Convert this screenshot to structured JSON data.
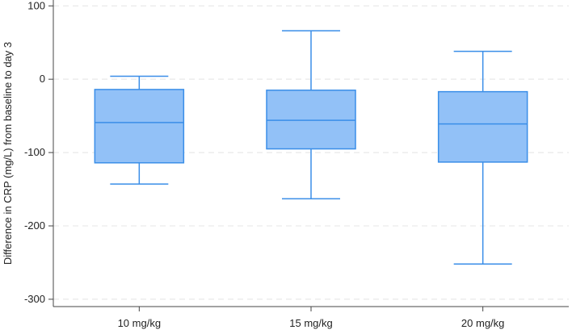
{
  "chart_data": {
    "type": "box",
    "title": "",
    "xlabel": "",
    "ylabel": "Difference in CRP (mg/L) from baseline to day 3",
    "ylim": [
      -310,
      108
    ],
    "yticks": [
      100,
      0,
      -100,
      -200,
      -300
    ],
    "ytick_labels": [
      "100",
      "0",
      "-100",
      "-200",
      "-300"
    ],
    "grid": "horizontal dashed",
    "categories": [
      "10 mg/kg",
      "15 mg/kg",
      "20 mg/kg"
    ],
    "boxes": [
      {
        "category": "10 mg/kg",
        "whisker_low": -143,
        "q1": -114,
        "median": -59,
        "q3": -14,
        "whisker_high": 4
      },
      {
        "category": "15 mg/kg",
        "whisker_low": -163,
        "q1": -95,
        "median": -56,
        "q3": -15,
        "whisker_high": 66
      },
      {
        "category": "20 mg/kg",
        "whisker_low": -252,
        "q1": -113,
        "median": -61,
        "q3": -17,
        "whisker_high": 38
      }
    ],
    "colors": {
      "box_fill": "#92c1f7",
      "box_stroke": "#3a8ee8",
      "grid": "#e4e4e4",
      "axis": "#444444"
    }
  }
}
